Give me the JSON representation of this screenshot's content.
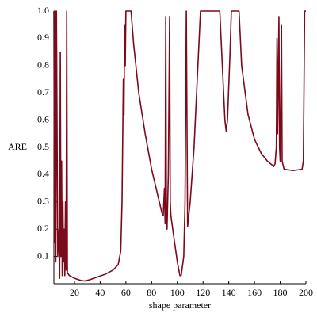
{
  "chart_data": {
    "type": "line",
    "xlabel": "shape parameter",
    "ylabel": "ARE",
    "x": [
      4,
      4.5,
      5,
      5.5,
      6,
      6.5,
      7,
      8,
      8.5,
      9,
      9.5,
      10,
      10.5,
      11,
      11.5,
      12,
      12.5,
      13,
      13.5,
      14,
      14.5,
      16,
      20,
      25,
      28,
      32,
      38,
      44,
      50,
      54,
      56,
      57,
      58,
      58.5,
      59,
      59.5,
      60,
      64,
      66,
      70,
      75,
      80,
      85,
      88,
      89,
      90,
      90.5,
      91,
      91.5,
      92,
      93,
      94,
      94.5,
      95,
      97,
      100,
      102,
      103,
      105,
      106,
      107,
      107.5,
      108,
      110,
      113,
      116,
      118,
      133,
      135,
      137,
      138,
      139,
      141,
      142,
      148,
      150,
      155,
      160,
      165,
      170,
      175,
      176,
      177,
      177.5,
      178,
      179,
      179.5,
      180,
      181,
      181.5,
      183,
      190,
      197,
      198,
      199,
      200
    ],
    "values": [
      1.0,
      0.15,
      1.0,
      0.08,
      1.0,
      0.55,
      0.1,
      0.2,
      0.02,
      0.85,
      0.1,
      0.45,
      0.03,
      0.3,
      0.08,
      0.2,
      0.03,
      0.3,
      0.05,
      1.0,
      0.04,
      0.03,
      0.02,
      0.012,
      0.01,
      0.015,
      0.025,
      0.035,
      0.05,
      0.07,
      0.12,
      0.3,
      0.75,
      0.62,
      0.95,
      0.8,
      1.0,
      1.0,
      0.88,
      0.7,
      0.55,
      0.42,
      0.32,
      0.26,
      0.25,
      0.35,
      0.22,
      0.98,
      0.25,
      0.2,
      0.4,
      0.98,
      0.3,
      0.25,
      0.18,
      0.08,
      0.03,
      0.03,
      0.1,
      0.3,
      1.0,
      0.6,
      0.21,
      0.3,
      0.5,
      0.8,
      1.0,
      1.0,
      0.8,
      0.6,
      0.56,
      0.6,
      0.85,
      1.0,
      1.0,
      0.8,
      0.62,
      0.53,
      0.48,
      0.45,
      0.43,
      0.44,
      0.5,
      0.9,
      0.55,
      0.98,
      0.5,
      0.45,
      0.95,
      0.45,
      0.42,
      0.415,
      0.42,
      0.45,
      1.0,
      1.0
    ],
    "color": "#7b0a1a",
    "xlim": [
      4,
      200
    ],
    "xticks": [
      20,
      40,
      60,
      80,
      100,
      120,
      140,
      160,
      180,
      200
    ],
    "ylim": [
      0,
      1
    ],
    "yticks": [
      0.1,
      0.2,
      0.3,
      0.4,
      0.5,
      0.6,
      0.7,
      0.8,
      0.9,
      {
        "value": 1,
        "label": "1.0"
      }
    ]
  }
}
